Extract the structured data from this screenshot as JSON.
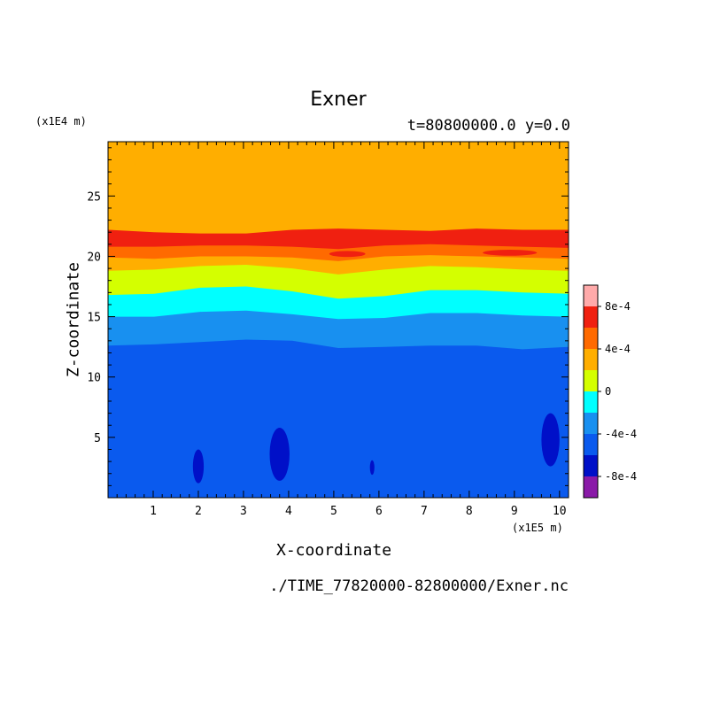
{
  "chart_data": {
    "type": "heatmap",
    "title": "Exner",
    "subtitle": "t=80800000.0 y=0.0",
    "xlabel": "X-coordinate",
    "ylabel": "Z-coordinate",
    "x_multiplier": "(x1E5 m)",
    "y_multiplier": "(x1E4 m)",
    "xlim": [
      0,
      10.2
    ],
    "ylim": [
      0,
      29.5
    ],
    "x_ticks": [
      1,
      2,
      3,
      4,
      5,
      6,
      7,
      8,
      9,
      10
    ],
    "y_ticks": [
      5,
      10,
      15,
      20,
      25
    ],
    "levels": [
      -0.001,
      -0.0008,
      -0.0006,
      -0.0004,
      -0.0002,
      0,
      0.0002,
      0.0004,
      0.0006,
      0.0008,
      0.001
    ],
    "level_colors": [
      "#8a1aa8",
      "#0010c8",
      "#0a5aee",
      "#1890f0",
      "#00ffff",
      "#d4ff00",
      "#ffae00",
      "#ff6a00",
      "#f02010",
      "#ffaaaa"
    ],
    "colorbar_labels": [
      {
        "level": 0.0008,
        "text": "8e-4"
      },
      {
        "level": 0.0004,
        "text": "4e-4"
      },
      {
        "level": 0,
        "text": "0"
      },
      {
        "level": -0.0004,
        "text": "-4e-4"
      },
      {
        "level": -0.0008,
        "text": "-8e-4"
      }
    ],
    "band_boundaries": [
      {
        "level": -0.0004,
        "z": [
          12.6,
          12.7,
          12.9,
          13.1,
          13.0,
          12.4,
          12.5,
          12.6,
          12.6,
          12.3,
          12.5
        ]
      },
      {
        "level": -0.0002,
        "z": [
          15.0,
          15.0,
          15.4,
          15.5,
          15.2,
          14.8,
          14.9,
          15.3,
          15.3,
          15.1,
          15.0
        ]
      },
      {
        "level": 0,
        "z": [
          16.8,
          16.9,
          17.4,
          17.5,
          17.1,
          16.5,
          16.7,
          17.2,
          17.2,
          17.0,
          16.9
        ]
      },
      {
        "level": 0.0002,
        "z": [
          18.8,
          18.9,
          19.2,
          19.3,
          19.0,
          18.5,
          18.9,
          19.2,
          19.1,
          18.9,
          18.8
        ]
      },
      {
        "level": 0.0004,
        "z": [
          19.9,
          19.8,
          20.0,
          20.0,
          19.9,
          19.6,
          20.0,
          20.1,
          20.0,
          19.9,
          19.8
        ]
      },
      {
        "level": 0.0006,
        "z": [
          20.8,
          20.8,
          20.9,
          20.9,
          20.8,
          20.6,
          20.9,
          21.0,
          20.9,
          20.8,
          20.7
        ]
      },
      {
        "level": 0.0004,
        "z": [
          22.2,
          22.0,
          21.9,
          21.9,
          22.2,
          22.3,
          22.2,
          22.1,
          22.3,
          22.2,
          22.2
        ]
      }
    ],
    "lows": [
      {
        "x": 2.0,
        "z": 2.6,
        "rx": 0.12,
        "rz": 1.4
      },
      {
        "x": 3.8,
        "z": 3.6,
        "rx": 0.22,
        "rz": 2.2
      },
      {
        "x": 5.85,
        "z": 2.5,
        "rx": 0.05,
        "rz": 0.6
      },
      {
        "x": 9.8,
        "z": 4.8,
        "rx": 0.2,
        "rz": 2.2
      }
    ],
    "highs": [
      {
        "x": 5.3,
        "z": 20.2,
        "rx": 0.4,
        "rz": 0.25
      },
      {
        "x": 8.9,
        "z": 20.3,
        "rx": 0.6,
        "rz": 0.25
      }
    ]
  },
  "source_file": "./TIME_77820000-82800000/Exner.nc"
}
